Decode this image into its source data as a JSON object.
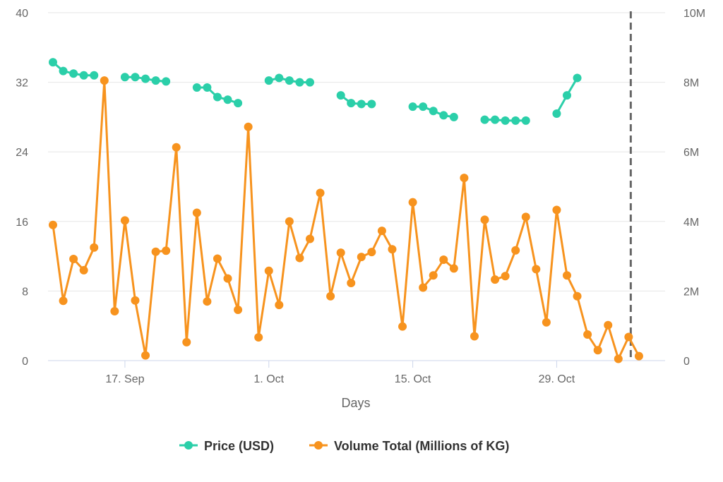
{
  "chart_data": {
    "type": "line",
    "xlabel": "Days",
    "x_ticks": [
      "17. Sep",
      "1. Oct",
      "15. Oct",
      "29. Oct"
    ],
    "x_tick_days": [
      17,
      31,
      45,
      59
    ],
    "left_axis": {
      "ticks": [
        "0",
        "8",
        "16",
        "24",
        "32",
        "40"
      ],
      "range": [
        0,
        40
      ]
    },
    "right_axis": {
      "ticks": [
        "0",
        "2M",
        "4M",
        "6M",
        "8M",
        "10M"
      ],
      "range": [
        0,
        10000000
      ]
    },
    "vertical_marker_day": 66,
    "grid": true,
    "legend_position": "bottom-center",
    "colors": {
      "price": "#2bcfa9",
      "volume": "#f7931e",
      "marker": "#666666"
    },
    "series": [
      {
        "name": "Price (USD)",
        "axis": "left",
        "color": "#2bcfa9",
        "segments": [
          [
            [
              10,
              34.3
            ],
            [
              11,
              33.3
            ],
            [
              12,
              33.0
            ],
            [
              13,
              32.8
            ],
            [
              14,
              32.8
            ]
          ],
          [
            [
              17,
              32.6
            ],
            [
              18,
              32.6
            ],
            [
              19,
              32.4
            ],
            [
              20,
              32.2
            ],
            [
              21,
              32.1
            ]
          ],
          [
            [
              24,
              31.4
            ],
            [
              25,
              31.4
            ],
            [
              26,
              30.3
            ],
            [
              27,
              30.0
            ],
            [
              28,
              29.6
            ]
          ],
          [
            [
              31,
              32.2
            ],
            [
              32,
              32.5
            ],
            [
              33,
              32.2
            ],
            [
              34,
              32.0
            ],
            [
              35,
              32.0
            ]
          ],
          [
            [
              38,
              30.5
            ],
            [
              39,
              29.6
            ],
            [
              40,
              29.5
            ],
            [
              41,
              29.5
            ]
          ],
          [
            [
              45,
              29.2
            ],
            [
              46,
              29.2
            ],
            [
              47,
              28.7
            ],
            [
              48,
              28.2
            ],
            [
              49,
              28.0
            ]
          ],
          [
            [
              52,
              27.7
            ],
            [
              53,
              27.7
            ],
            [
              54,
              27.6
            ],
            [
              55,
              27.6
            ],
            [
              56,
              27.6
            ]
          ],
          [
            [
              59,
              28.4
            ],
            [
              60,
              30.5
            ],
            [
              61,
              32.5
            ]
          ]
        ]
      },
      {
        "name": "Volume Total (Millions of KG)",
        "axis": "right",
        "color": "#f7931e",
        "points": [
          [
            10,
            3.9
          ],
          [
            11,
            1.72
          ],
          [
            12,
            2.92
          ],
          [
            13,
            2.6
          ],
          [
            14,
            3.25
          ],
          [
            15,
            8.05
          ],
          [
            16,
            1.42
          ],
          [
            17,
            4.03
          ],
          [
            18,
            1.73
          ],
          [
            19,
            0.15
          ],
          [
            20,
            3.13
          ],
          [
            21,
            3.16
          ],
          [
            22,
            6.13
          ],
          [
            23,
            0.53
          ],
          [
            24,
            4.25
          ],
          [
            25,
            1.7
          ],
          [
            26,
            2.93
          ],
          [
            27,
            2.36
          ],
          [
            28,
            1.46
          ],
          [
            29,
            6.72
          ],
          [
            30,
            0.67
          ],
          [
            31,
            2.58
          ],
          [
            32,
            1.6
          ],
          [
            33,
            4.0
          ],
          [
            34,
            2.95
          ],
          [
            35,
            3.5
          ],
          [
            36,
            4.82
          ],
          [
            37,
            1.85
          ],
          [
            38,
            3.1
          ],
          [
            39,
            2.23
          ],
          [
            40,
            2.98
          ],
          [
            41,
            3.12
          ],
          [
            42,
            3.73
          ],
          [
            43,
            3.2
          ],
          [
            44,
            0.98
          ],
          [
            45,
            4.55
          ],
          [
            46,
            2.1
          ],
          [
            47,
            2.45
          ],
          [
            48,
            2.9
          ],
          [
            49,
            2.65
          ],
          [
            50,
            5.25
          ],
          [
            51,
            0.7
          ],
          [
            52,
            4.05
          ],
          [
            53,
            2.33
          ],
          [
            54,
            2.43
          ],
          [
            55,
            3.17
          ],
          [
            56,
            4.13
          ],
          [
            57,
            2.63
          ],
          [
            58,
            1.1
          ],
          [
            59,
            4.33
          ],
          [
            60,
            2.45
          ],
          [
            61,
            1.85
          ],
          [
            62,
            0.75
          ],
          [
            63,
            0.3
          ],
          [
            64,
            1.02
          ],
          [
            65,
            0.05
          ],
          [
            66,
            0.68
          ],
          [
            67,
            0.13
          ]
        ]
      }
    ]
  }
}
